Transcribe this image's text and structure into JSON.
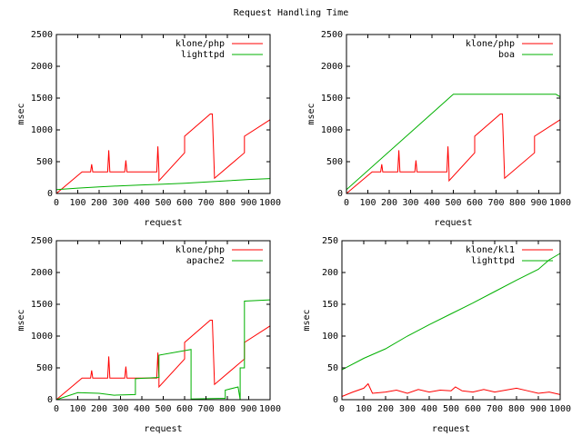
{
  "figure": {
    "title": "Request Handling Time"
  },
  "colors": {
    "red": "#ff0000",
    "green": "#00b000",
    "axis": "#000000"
  },
  "chart_data": [
    {
      "type": "line",
      "xlabel": "request",
      "ylabel": "msec",
      "xlim": [
        0,
        1000
      ],
      "ylim": [
        0,
        2500
      ],
      "xticks": [
        0,
        100,
        200,
        300,
        400,
        500,
        600,
        700,
        800,
        900,
        1000
      ],
      "yticks": [
        0,
        500,
        1000,
        1500,
        2000,
        2500
      ],
      "legend_position": "top-right",
      "series": [
        {
          "name": "klone/php",
          "color": "#ff0000",
          "x": [
            0,
            120,
            160,
            165,
            170,
            240,
            245,
            250,
            320,
            325,
            330,
            460,
            470,
            475,
            480,
            480,
            600,
            600,
            720,
            730,
            740,
            880,
            880,
            1000
          ],
          "y": [
            0,
            340,
            340,
            460,
            340,
            340,
            680,
            340,
            340,
            520,
            340,
            340,
            340,
            740,
            340,
            200,
            640,
            900,
            1250,
            1250,
            240,
            640,
            900,
            1160
          ]
        },
        {
          "name": "lighttpd",
          "color": "#00b000",
          "x": [
            0,
            100,
            200,
            300,
            400,
            500,
            600,
            700,
            800,
            900,
            1000
          ],
          "y": [
            60,
            85,
            105,
            120,
            135,
            145,
            160,
            180,
            200,
            220,
            235
          ]
        }
      ]
    },
    {
      "type": "line",
      "xlabel": "request",
      "ylabel": "msec",
      "xlim": [
        0,
        1000
      ],
      "ylim": [
        0,
        2500
      ],
      "xticks": [
        0,
        100,
        200,
        300,
        400,
        500,
        600,
        700,
        800,
        900,
        1000
      ],
      "yticks": [
        0,
        500,
        1000,
        1500,
        2000,
        2500
      ],
      "legend_position": "top-right",
      "series": [
        {
          "name": "klone/php",
          "color": "#ff0000",
          "x": [
            0,
            120,
            160,
            165,
            170,
            240,
            245,
            250,
            320,
            325,
            330,
            460,
            470,
            475,
            480,
            480,
            600,
            600,
            720,
            730,
            740,
            880,
            880,
            1000
          ],
          "y": [
            0,
            340,
            340,
            460,
            340,
            340,
            680,
            340,
            340,
            520,
            340,
            340,
            340,
            740,
            340,
            200,
            640,
            900,
            1250,
            1250,
            240,
            640,
            900,
            1160
          ]
        },
        {
          "name": "boa",
          "color": "#00b000",
          "x": [
            0,
            500,
            980,
            1000
          ],
          "y": [
            60,
            1560,
            1560,
            1520
          ]
        }
      ]
    },
    {
      "type": "line",
      "xlabel": "request",
      "ylabel": "msec",
      "xlim": [
        0,
        1000
      ],
      "ylim": [
        0,
        2500
      ],
      "xticks": [
        0,
        100,
        200,
        300,
        400,
        500,
        600,
        700,
        800,
        900,
        1000
      ],
      "yticks": [
        0,
        500,
        1000,
        1500,
        2000,
        2500
      ],
      "legend_position": "top-right",
      "series": [
        {
          "name": "klone/php",
          "color": "#ff0000",
          "x": [
            0,
            120,
            160,
            165,
            170,
            240,
            245,
            250,
            320,
            325,
            330,
            460,
            470,
            475,
            480,
            480,
            600,
            600,
            720,
            730,
            740,
            880,
            880,
            1000
          ],
          "y": [
            0,
            340,
            340,
            460,
            340,
            340,
            680,
            340,
            340,
            520,
            340,
            340,
            340,
            740,
            340,
            200,
            640,
            900,
            1250,
            1250,
            240,
            640,
            900,
            1160
          ]
        },
        {
          "name": "apache2",
          "color": "#00b000",
          "x": [
            0,
            100,
            200,
            270,
            370,
            370,
            480,
            480,
            630,
            630,
            760,
            790,
            790,
            850,
            860,
            860,
            880,
            880,
            1000
          ],
          "y": [
            0,
            110,
            100,
            70,
            80,
            330,
            350,
            700,
            790,
            10,
            20,
            20,
            150,
            200,
            0,
            500,
            500,
            1550,
            1570
          ]
        }
      ]
    },
    {
      "type": "line",
      "xlabel": "request",
      "ylabel": "msec",
      "xlim": [
        0,
        1000
      ],
      "ylim": [
        0,
        250
      ],
      "xticks": [
        0,
        100,
        200,
        300,
        400,
        500,
        600,
        700,
        800,
        900,
        1000
      ],
      "yticks": [
        0,
        50,
        100,
        150,
        200,
        250
      ],
      "legend_position": "top-right",
      "series": [
        {
          "name": "klone/kl1",
          "color": "#ff0000",
          "x": [
            0,
            50,
            100,
            120,
            140,
            200,
            250,
            300,
            350,
            400,
            450,
            500,
            520,
            550,
            600,
            650,
            700,
            750,
            800,
            850,
            900,
            950,
            1000
          ],
          "y": [
            5,
            12,
            18,
            25,
            10,
            12,
            15,
            10,
            16,
            12,
            15,
            14,
            20,
            14,
            12,
            16,
            12,
            15,
            18,
            14,
            10,
            12,
            8
          ]
        },
        {
          "name": "lighttpd",
          "color": "#00b000",
          "x": [
            0,
            100,
            200,
            300,
            400,
            500,
            600,
            700,
            800,
            900,
            950,
            1000
          ],
          "y": [
            47,
            65,
            80,
            100,
            118,
            135,
            152,
            170,
            188,
            205,
            220,
            230
          ]
        }
      ]
    }
  ]
}
